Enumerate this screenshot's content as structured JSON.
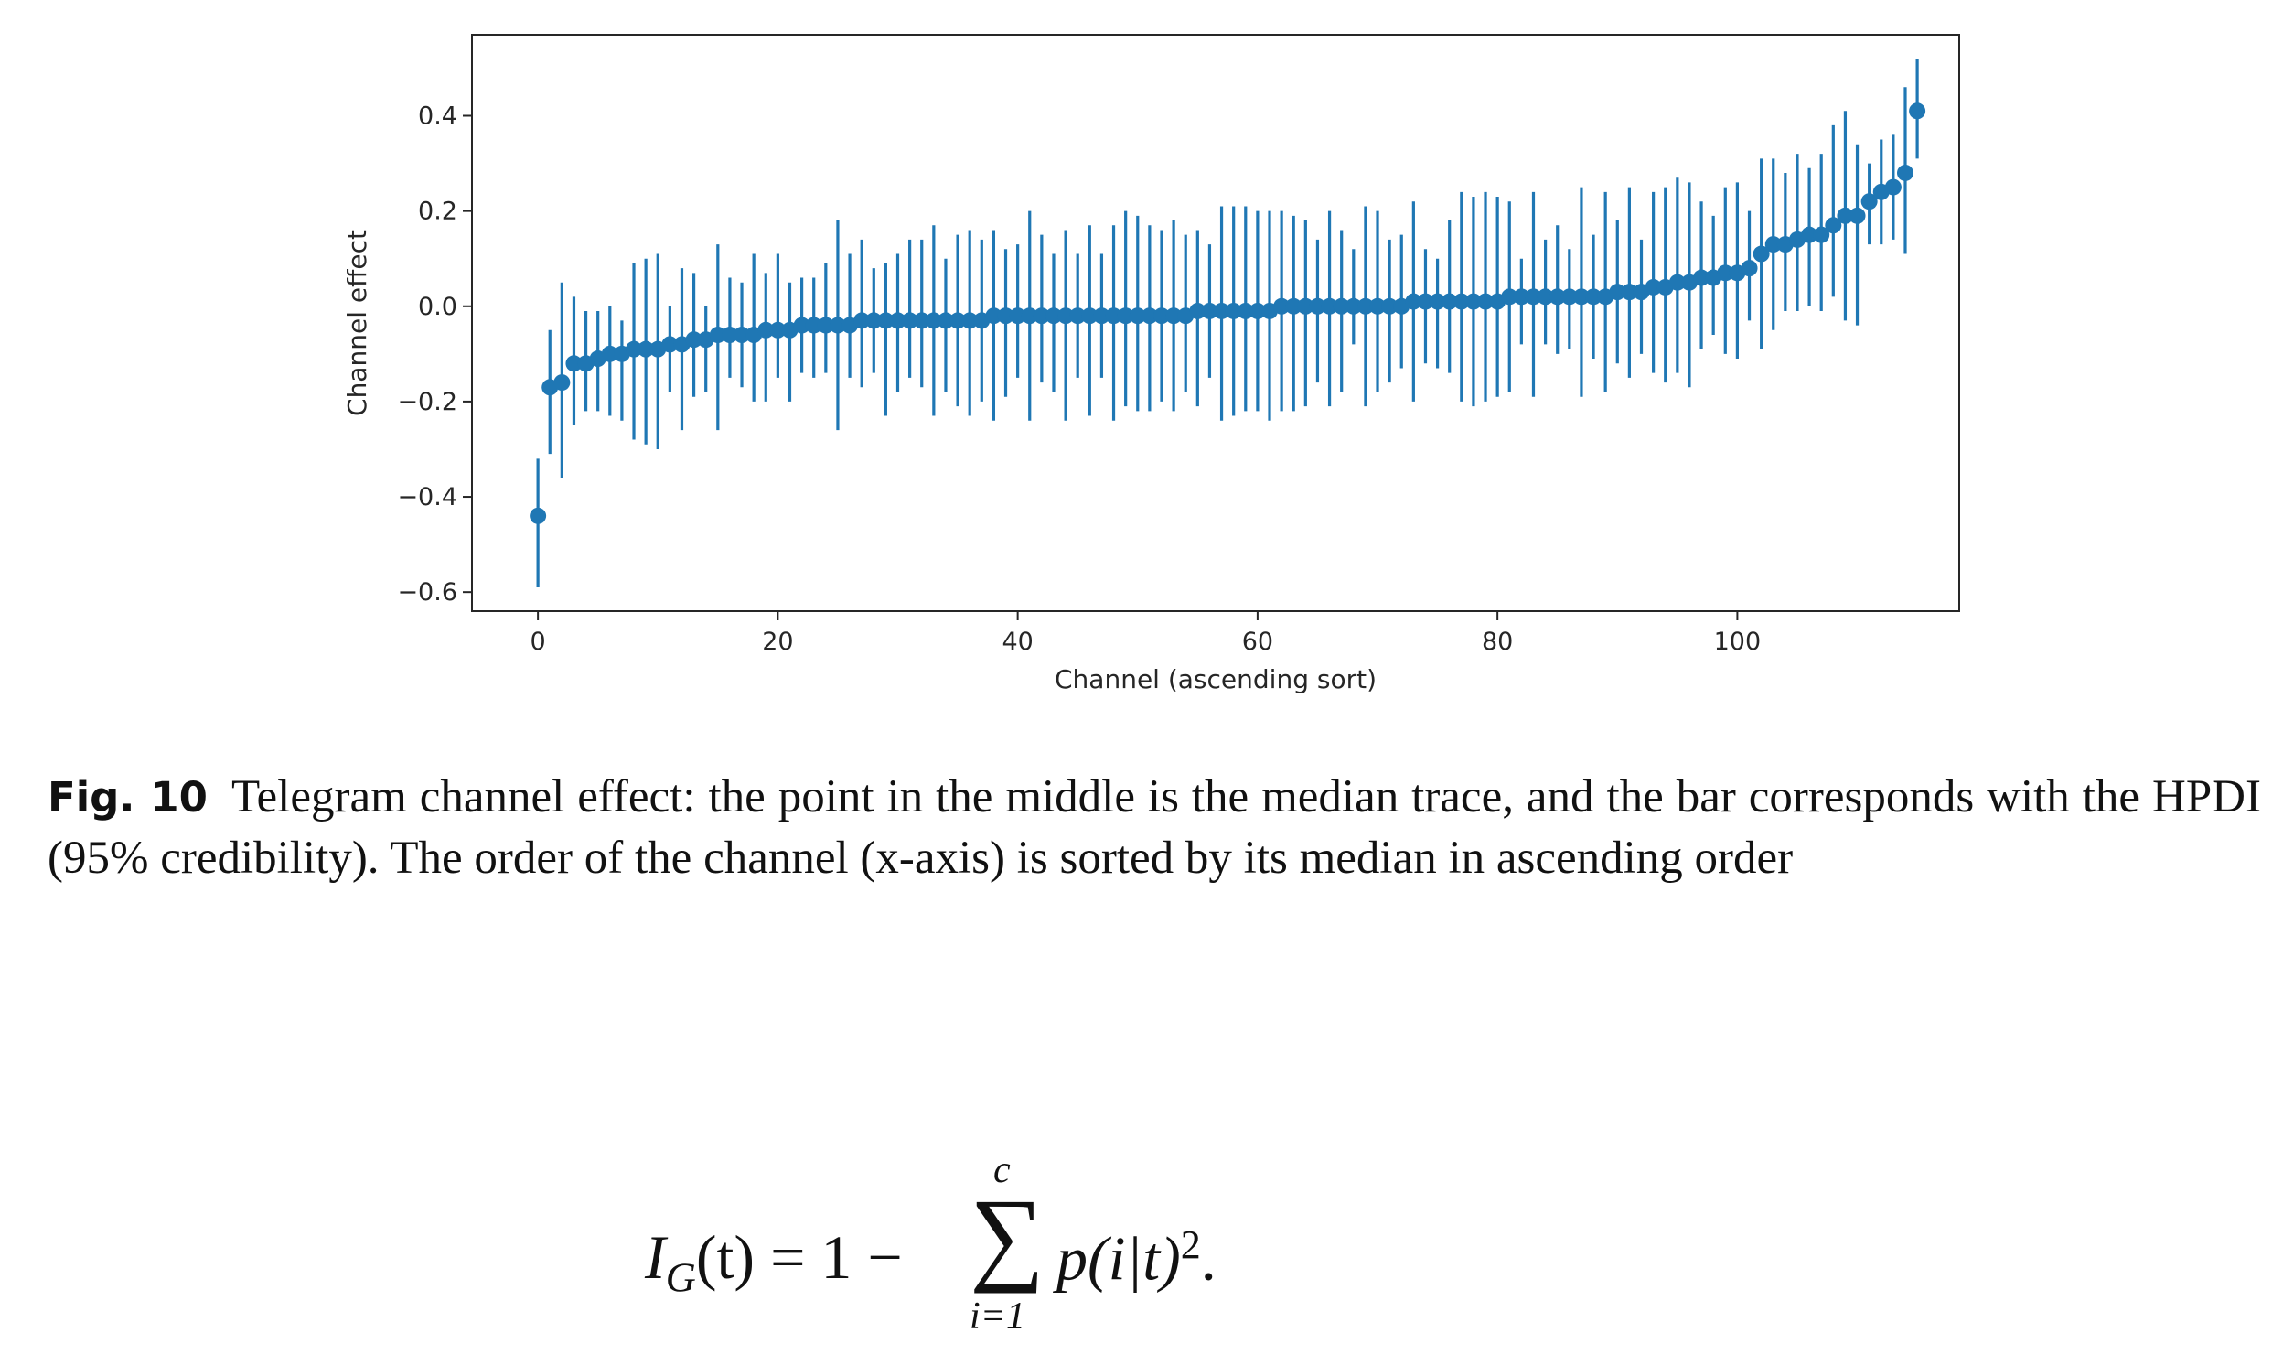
{
  "caption": {
    "label": "Fig. 10",
    "text": "Telegram channel effect: the point in the middle is the median trace, and the bar corresponds with the HPDI (95% credibility). The order of the channel (x-axis) is sorted by its median in ascending order"
  },
  "equation": {
    "lhs_main": "I",
    "lhs_sub": "G",
    "lhs_arg": "(t) = 1 − ",
    "sum_upper": "c",
    "sum_lower": "i=1",
    "rhs_main": "p(i|t)",
    "rhs_sup": "2",
    "rhs_end": "."
  },
  "chart_data": {
    "type": "scatter",
    "xlabel": "Channel (ascending sort)",
    "ylabel": "Channel effect",
    "xlim": [
      -5.5,
      118.5
    ],
    "ylim": [
      -0.64,
      0.57
    ],
    "xticks": [
      0,
      20,
      40,
      60,
      80,
      100
    ],
    "yticks": [
      -0.6,
      -0.4,
      -0.2,
      0.0,
      0.2,
      0.4
    ],
    "xtick_labels": [
      "0",
      "20",
      "40",
      "60",
      "80",
      "100"
    ],
    "ytick_labels": [
      "−0.6",
      "−0.4",
      "−0.2",
      "0.0",
      "0.2",
      "0.4"
    ],
    "grid": false,
    "color": "#1f77b4",
    "points": [
      {
        "x": 0,
        "median": -0.44,
        "low": -0.59,
        "high": -0.32
      },
      {
        "x": 1,
        "median": -0.17,
        "low": -0.31,
        "high": -0.05
      },
      {
        "x": 2,
        "median": -0.16,
        "low": -0.36,
        "high": 0.05
      },
      {
        "x": 3,
        "median": -0.12,
        "low": -0.25,
        "high": 0.02
      },
      {
        "x": 4,
        "median": -0.12,
        "low": -0.22,
        "high": -0.01
      },
      {
        "x": 5,
        "median": -0.11,
        "low": -0.22,
        "high": -0.01
      },
      {
        "x": 6,
        "median": -0.1,
        "low": -0.23,
        "high": 0.0
      },
      {
        "x": 7,
        "median": -0.1,
        "low": -0.24,
        "high": -0.03
      },
      {
        "x": 8,
        "median": -0.09,
        "low": -0.28,
        "high": 0.09
      },
      {
        "x": 9,
        "median": -0.09,
        "low": -0.29,
        "high": 0.1
      },
      {
        "x": 10,
        "median": -0.09,
        "low": -0.3,
        "high": 0.11
      },
      {
        "x": 11,
        "median": -0.08,
        "low": -0.18,
        "high": 0.0
      },
      {
        "x": 12,
        "median": -0.08,
        "low": -0.26,
        "high": 0.08
      },
      {
        "x": 13,
        "median": -0.07,
        "low": -0.19,
        "high": 0.07
      },
      {
        "x": 14,
        "median": -0.07,
        "low": -0.18,
        "high": 0.0
      },
      {
        "x": 15,
        "median": -0.06,
        "low": -0.26,
        "high": 0.13
      },
      {
        "x": 16,
        "median": -0.06,
        "low": -0.15,
        "high": 0.06
      },
      {
        "x": 17,
        "median": -0.06,
        "low": -0.17,
        "high": 0.05
      },
      {
        "x": 18,
        "median": -0.06,
        "low": -0.2,
        "high": 0.11
      },
      {
        "x": 19,
        "median": -0.05,
        "low": -0.2,
        "high": 0.07
      },
      {
        "x": 20,
        "median": -0.05,
        "low": -0.15,
        "high": 0.11
      },
      {
        "x": 21,
        "median": -0.05,
        "low": -0.2,
        "high": 0.05
      },
      {
        "x": 22,
        "median": -0.04,
        "low": -0.14,
        "high": 0.06
      },
      {
        "x": 23,
        "median": -0.04,
        "low": -0.15,
        "high": 0.06
      },
      {
        "x": 24,
        "median": -0.04,
        "low": -0.14,
        "high": 0.09
      },
      {
        "x": 25,
        "median": -0.04,
        "low": -0.26,
        "high": 0.18
      },
      {
        "x": 26,
        "median": -0.04,
        "low": -0.15,
        "high": 0.11
      },
      {
        "x": 27,
        "median": -0.03,
        "low": -0.17,
        "high": 0.14
      },
      {
        "x": 28,
        "median": -0.03,
        "low": -0.14,
        "high": 0.08
      },
      {
        "x": 29,
        "median": -0.03,
        "low": -0.23,
        "high": 0.09
      },
      {
        "x": 30,
        "median": -0.03,
        "low": -0.18,
        "high": 0.11
      },
      {
        "x": 31,
        "median": -0.03,
        "low": -0.15,
        "high": 0.14
      },
      {
        "x": 32,
        "median": -0.03,
        "low": -0.17,
        "high": 0.14
      },
      {
        "x": 33,
        "median": -0.03,
        "low": -0.23,
        "high": 0.17
      },
      {
        "x": 34,
        "median": -0.03,
        "low": -0.18,
        "high": 0.1
      },
      {
        "x": 35,
        "median": -0.03,
        "low": -0.21,
        "high": 0.15
      },
      {
        "x": 36,
        "median": -0.03,
        "low": -0.23,
        "high": 0.16
      },
      {
        "x": 37,
        "median": -0.03,
        "low": -0.2,
        "high": 0.14
      },
      {
        "x": 38,
        "median": -0.02,
        "low": -0.24,
        "high": 0.16
      },
      {
        "x": 39,
        "median": -0.02,
        "low": -0.19,
        "high": 0.12
      },
      {
        "x": 40,
        "median": -0.02,
        "low": -0.15,
        "high": 0.13
      },
      {
        "x": 41,
        "median": -0.02,
        "low": -0.24,
        "high": 0.2
      },
      {
        "x": 42,
        "median": -0.02,
        "low": -0.16,
        "high": 0.15
      },
      {
        "x": 43,
        "median": -0.02,
        "low": -0.18,
        "high": 0.11
      },
      {
        "x": 44,
        "median": -0.02,
        "low": -0.24,
        "high": 0.16
      },
      {
        "x": 45,
        "median": -0.02,
        "low": -0.15,
        "high": 0.11
      },
      {
        "x": 46,
        "median": -0.02,
        "low": -0.23,
        "high": 0.17
      },
      {
        "x": 47,
        "median": -0.02,
        "low": -0.15,
        "high": 0.11
      },
      {
        "x": 48,
        "median": -0.02,
        "low": -0.24,
        "high": 0.17
      },
      {
        "x": 49,
        "median": -0.02,
        "low": -0.21,
        "high": 0.2
      },
      {
        "x": 50,
        "median": -0.02,
        "low": -0.22,
        "high": 0.19
      },
      {
        "x": 51,
        "median": -0.02,
        "low": -0.22,
        "high": 0.17
      },
      {
        "x": 52,
        "median": -0.02,
        "low": -0.2,
        "high": 0.16
      },
      {
        "x": 53,
        "median": -0.02,
        "low": -0.22,
        "high": 0.18
      },
      {
        "x": 54,
        "median": -0.02,
        "low": -0.18,
        "high": 0.15
      },
      {
        "x": 55,
        "median": -0.01,
        "low": -0.21,
        "high": 0.16
      },
      {
        "x": 56,
        "median": -0.01,
        "low": -0.15,
        "high": 0.13
      },
      {
        "x": 57,
        "median": -0.01,
        "low": -0.24,
        "high": 0.21
      },
      {
        "x": 58,
        "median": -0.01,
        "low": -0.23,
        "high": 0.21
      },
      {
        "x": 59,
        "median": -0.01,
        "low": -0.22,
        "high": 0.21
      },
      {
        "x": 60,
        "median": -0.01,
        "low": -0.22,
        "high": 0.2
      },
      {
        "x": 61,
        "median": -0.01,
        "low": -0.24,
        "high": 0.2
      },
      {
        "x": 62,
        "median": 0.0,
        "low": -0.22,
        "high": 0.2
      },
      {
        "x": 63,
        "median": 0.0,
        "low": -0.22,
        "high": 0.19
      },
      {
        "x": 64,
        "median": 0.0,
        "low": -0.21,
        "high": 0.18
      },
      {
        "x": 65,
        "median": 0.0,
        "low": -0.16,
        "high": 0.14
      },
      {
        "x": 66,
        "median": 0.0,
        "low": -0.21,
        "high": 0.2
      },
      {
        "x": 67,
        "median": 0.0,
        "low": -0.18,
        "high": 0.16
      },
      {
        "x": 68,
        "median": 0.0,
        "low": -0.08,
        "high": 0.12
      },
      {
        "x": 69,
        "median": 0.0,
        "low": -0.21,
        "high": 0.21
      },
      {
        "x": 70,
        "median": 0.0,
        "low": -0.18,
        "high": 0.2
      },
      {
        "x": 71,
        "median": 0.0,
        "low": -0.16,
        "high": 0.14
      },
      {
        "x": 72,
        "median": 0.0,
        "low": -0.13,
        "high": 0.15
      },
      {
        "x": 73,
        "median": 0.01,
        "low": -0.2,
        "high": 0.22
      },
      {
        "x": 74,
        "median": 0.01,
        "low": -0.12,
        "high": 0.12
      },
      {
        "x": 75,
        "median": 0.01,
        "low": -0.13,
        "high": 0.1
      },
      {
        "x": 76,
        "median": 0.01,
        "low": -0.14,
        "high": 0.18
      },
      {
        "x": 77,
        "median": 0.01,
        "low": -0.2,
        "high": 0.24
      },
      {
        "x": 78,
        "median": 0.01,
        "low": -0.21,
        "high": 0.23
      },
      {
        "x": 79,
        "median": 0.01,
        "low": -0.2,
        "high": 0.24
      },
      {
        "x": 80,
        "median": 0.01,
        "low": -0.19,
        "high": 0.23
      },
      {
        "x": 81,
        "median": 0.02,
        "low": -0.18,
        "high": 0.22
      },
      {
        "x": 82,
        "median": 0.02,
        "low": -0.08,
        "high": 0.1
      },
      {
        "x": 83,
        "median": 0.02,
        "low": -0.19,
        "high": 0.24
      },
      {
        "x": 84,
        "median": 0.02,
        "low": -0.08,
        "high": 0.14
      },
      {
        "x": 85,
        "median": 0.02,
        "low": -0.1,
        "high": 0.17
      },
      {
        "x": 86,
        "median": 0.02,
        "low": -0.09,
        "high": 0.12
      },
      {
        "x": 87,
        "median": 0.02,
        "low": -0.19,
        "high": 0.25
      },
      {
        "x": 88,
        "median": 0.02,
        "low": -0.11,
        "high": 0.15
      },
      {
        "x": 89,
        "median": 0.02,
        "low": -0.18,
        "high": 0.24
      },
      {
        "x": 90,
        "median": 0.03,
        "low": -0.12,
        "high": 0.18
      },
      {
        "x": 91,
        "median": 0.03,
        "low": -0.15,
        "high": 0.25
      },
      {
        "x": 92,
        "median": 0.03,
        "low": -0.1,
        "high": 0.14
      },
      {
        "x": 93,
        "median": 0.04,
        "low": -0.14,
        "high": 0.24
      },
      {
        "x": 94,
        "median": 0.04,
        "low": -0.16,
        "high": 0.25
      },
      {
        "x": 95,
        "median": 0.05,
        "low": -0.14,
        "high": 0.27
      },
      {
        "x": 96,
        "median": 0.05,
        "low": -0.17,
        "high": 0.26
      },
      {
        "x": 97,
        "median": 0.06,
        "low": -0.09,
        "high": 0.22
      },
      {
        "x": 98,
        "median": 0.06,
        "low": -0.06,
        "high": 0.19
      },
      {
        "x": 99,
        "median": 0.07,
        "low": -0.1,
        "high": 0.25
      },
      {
        "x": 100,
        "median": 0.07,
        "low": -0.11,
        "high": 0.26
      },
      {
        "x": 101,
        "median": 0.08,
        "low": -0.03,
        "high": 0.2
      },
      {
        "x": 102,
        "median": 0.11,
        "low": -0.09,
        "high": 0.31
      },
      {
        "x": 103,
        "median": 0.13,
        "low": -0.05,
        "high": 0.31
      },
      {
        "x": 104,
        "median": 0.13,
        "low": -0.01,
        "high": 0.28
      },
      {
        "x": 105,
        "median": 0.14,
        "low": -0.01,
        "high": 0.32
      },
      {
        "x": 106,
        "median": 0.15,
        "low": 0.0,
        "high": 0.29
      },
      {
        "x": 107,
        "median": 0.15,
        "low": -0.01,
        "high": 0.32
      },
      {
        "x": 108,
        "median": 0.17,
        "low": 0.02,
        "high": 0.38
      },
      {
        "x": 109,
        "median": 0.19,
        "low": -0.03,
        "high": 0.41
      },
      {
        "x": 110,
        "median": 0.19,
        "low": -0.04,
        "high": 0.34
      },
      {
        "x": 111,
        "median": 0.22,
        "low": 0.13,
        "high": 0.3
      },
      {
        "x": 112,
        "median": 0.24,
        "low": 0.13,
        "high": 0.35
      },
      {
        "x": 113,
        "median": 0.25,
        "low": 0.14,
        "high": 0.36
      },
      {
        "x": 114,
        "median": 0.28,
        "low": 0.11,
        "high": 0.46
      },
      {
        "x": 115,
        "median": 0.41,
        "low": 0.31,
        "high": 0.52
      }
    ]
  }
}
